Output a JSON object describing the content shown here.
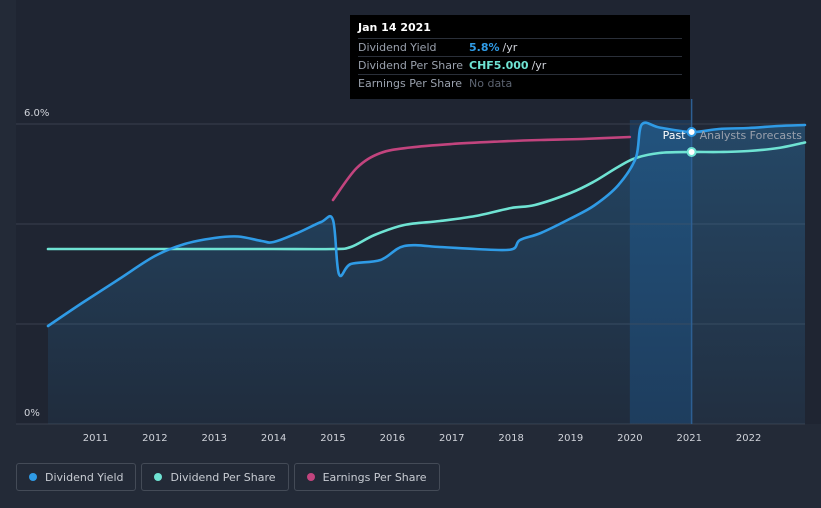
{
  "tooltip": {
    "date": "Jan 14 2021",
    "rows": [
      {
        "label": "Dividend Yield",
        "value": "5.8%",
        "unit": "/yr"
      },
      {
        "label": "Dividend Per Share",
        "value": "CHF5.000",
        "unit": "/yr"
      },
      {
        "label": "Earnings Per Share",
        "value": "No data"
      }
    ]
  },
  "legend": [
    {
      "label": "Dividend Yield",
      "color": "#2f9be6"
    },
    {
      "label": "Dividend Per Share",
      "color": "#6fe3d3"
    },
    {
      "label": "Earnings Per Share",
      "color": "#c2447e"
    }
  ],
  "chart_data": {
    "type": "line",
    "title": "",
    "xlabel": "",
    "ylabel": "",
    "xlim": [
      2010.2,
      2022.95
    ],
    "ylim": [
      0,
      6.0
    ],
    "y_tick_labels": [
      {
        "value": 6.0,
        "label": "6.0%"
      },
      {
        "value": 0,
        "label": "0%"
      }
    ],
    "x_tick_labels": [
      "2011",
      "2012",
      "2013",
      "2014",
      "2015",
      "2016",
      "2017",
      "2018",
      "2019",
      "2020",
      "2021",
      "2022"
    ],
    "x_tick_values": [
      2011,
      2012,
      2013,
      2014,
      2015,
      2016,
      2017,
      2018,
      2019,
      2020,
      2021,
      2022
    ],
    "past_label": "Past",
    "forecast_label": "Analysts Forecasts",
    "forecast_start": 2020.0,
    "current_date": 2021.04,
    "series": [
      {
        "name": "Dividend Yield",
        "color": "#2f9be6",
        "x": [
          2010.2,
          2010.8,
          2011.4,
          2012.0,
          2012.5,
          2013.0,
          2013.4,
          2013.8,
          2014.0,
          2014.4,
          2014.8,
          2015.0,
          2015.1,
          2015.3,
          2015.8,
          2016.2,
          2016.8,
          2017.4,
          2018.0,
          2018.15,
          2018.5,
          2019.0,
          2019.4,
          2019.8,
          2020.1,
          2020.2,
          2020.5,
          2021.04,
          2021.5,
          2022.0,
          2022.5,
          2022.95
        ],
        "values": [
          1.96,
          2.44,
          2.9,
          3.36,
          3.6,
          3.72,
          3.75,
          3.66,
          3.64,
          3.82,
          4.04,
          4.08,
          3.0,
          3.2,
          3.28,
          3.56,
          3.54,
          3.5,
          3.49,
          3.68,
          3.82,
          4.11,
          4.37,
          4.77,
          5.32,
          5.99,
          5.93,
          5.84,
          5.9,
          5.92,
          5.96,
          5.98
        ]
      },
      {
        "name": "Dividend Per Share",
        "color": "#6fe3d3",
        "x": [
          2010.2,
          2011.0,
          2012.0,
          2013.0,
          2014.0,
          2015.0,
          2015.3,
          2015.7,
          2016.2,
          2016.8,
          2017.4,
          2018.0,
          2018.4,
          2019.0,
          2019.4,
          2019.8,
          2020.1,
          2020.5,
          2021.04,
          2021.5,
          2022.0,
          2022.5,
          2022.95
        ],
        "values": [
          3.5,
          3.5,
          3.5,
          3.5,
          3.5,
          3.5,
          3.54,
          3.78,
          3.98,
          4.06,
          4.16,
          4.32,
          4.38,
          4.62,
          4.85,
          5.14,
          5.32,
          5.42,
          5.44,
          5.44,
          5.46,
          5.52,
          5.63
        ]
      },
      {
        "name": "Earnings Per Share",
        "color": "#c2447e",
        "x": [
          2015.0,
          2015.4,
          2015.8,
          2016.3,
          2017.0,
          2017.8,
          2018.5,
          2019.2,
          2020.0
        ],
        "values": [
          4.48,
          5.12,
          5.42,
          5.53,
          5.6,
          5.65,
          5.68,
          5.7,
          5.74
        ]
      }
    ]
  }
}
